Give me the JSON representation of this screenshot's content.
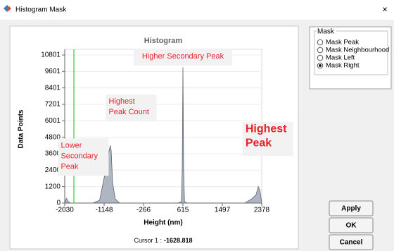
{
  "window_title": "Histogram Mask",
  "chart_data": {
    "type": "area",
    "title": "Histogram",
    "x_label": "Height (nm)",
    "y_label": "Data Points",
    "x": [
      -2030,
      -1990,
      -1950,
      -1900,
      -1400,
      -1250,
      -1150,
      -1060,
      -1010,
      -990,
      -960,
      -900,
      -800,
      500,
      580,
      600,
      615,
      630,
      650,
      700,
      2000,
      2150,
      2250,
      2300,
      2340,
      2378
    ],
    "series": [
      {
        "color": "#aeb6c2",
        "values": [
          0,
          350,
          100,
          0,
          0,
          200,
          1800,
          3500,
          4200,
          3800,
          1500,
          300,
          0,
          0,
          100,
          2500,
          9900,
          2500,
          100,
          0,
          0,
          300,
          600,
          1200,
          900,
          0
        ]
      }
    ],
    "xlim": [
      -2030,
      2378
    ],
    "ylim": [
      0,
      10801
    ],
    "xticks": [
      -2030,
      -1148,
      -266,
      615,
      1497,
      2378
    ],
    "yticks": [
      0,
      1200,
      2400,
      3600,
      4800,
      6001,
      7201,
      8401,
      9601,
      10801
    ],
    "grid": true,
    "marker_x": -1825,
    "marker_color": "#33cc33",
    "annotations": [
      {
        "lines": [
          "Higher Secondary Peak"
        ],
        "x": 615,
        "y": 10801
      },
      {
        "lines": [
          "Highest",
          "Peak Count"
        ],
        "x": -1110,
        "y": 7500
      },
      {
        "lines": [
          "Lower",
          "Secondary",
          "Peak"
        ],
        "x": -2180,
        "y": 4300
      },
      {
        "lines": [
          "Highest",
          "Peak"
        ],
        "x": 1950,
        "y": 5500,
        "style": "big"
      }
    ]
  },
  "cursor": {
    "label": "Cursor 1 :",
    "value": -1628.818
  },
  "mask_group": {
    "title": "Mask",
    "options": [
      "Mask Peak",
      "Mask Neighbourhood",
      "Mask Left",
      "Mask Right"
    ],
    "selected": 3
  },
  "buttons": [
    "Apply",
    "OK",
    "Cancel"
  ]
}
